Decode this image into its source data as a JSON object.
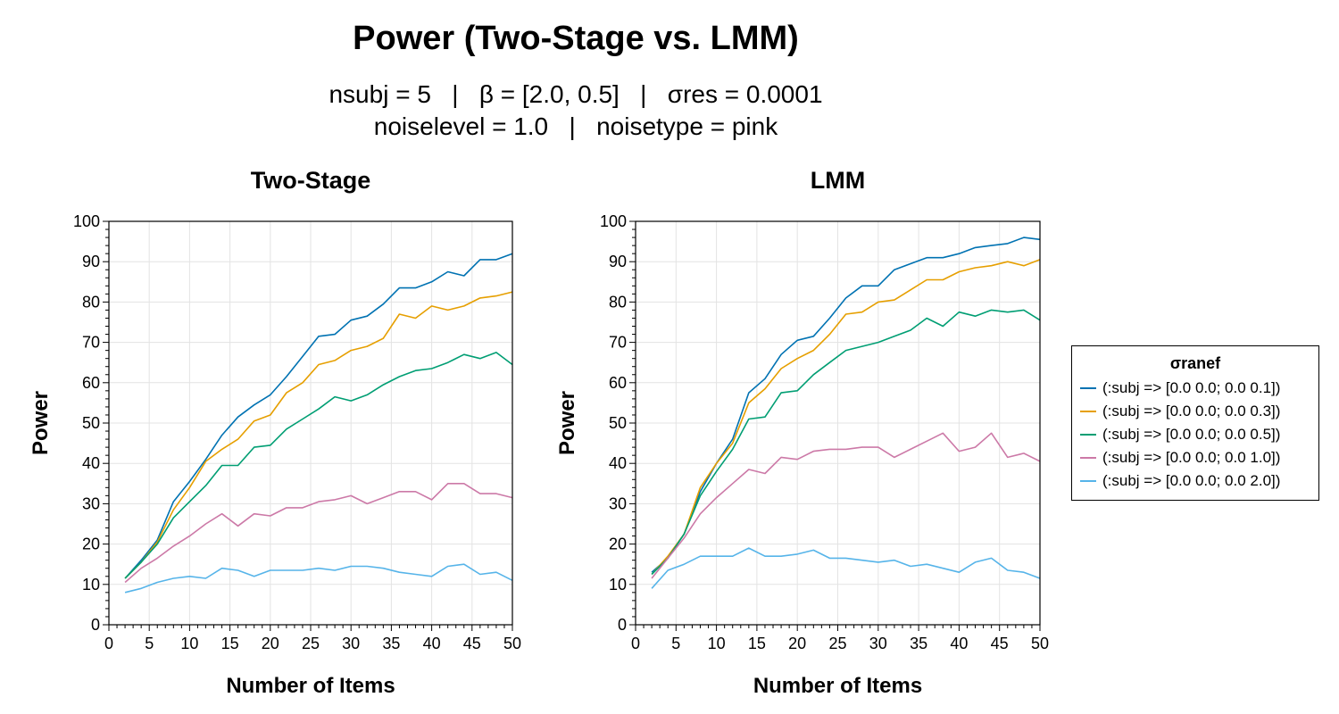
{
  "header": {
    "title": "Power (Two-Stage vs. LMM)",
    "subtitle_line1": "nsubj = 5   |   β = [2.0, 0.5]   |   σres = 0.0001",
    "subtitle_line2": "noiselevel = 1.0   |   noisetype = pink"
  },
  "legend": {
    "title": "σranef",
    "placement": "right",
    "items": [
      {
        "label": "(:subj => [0.0 0.0; 0.0 0.1])",
        "color": "#0072b2"
      },
      {
        "label": "(:subj => [0.0 0.0; 0.0 0.3])",
        "color": "#e69f00"
      },
      {
        "label": "(:subj => [0.0 0.0; 0.0 0.5])",
        "color": "#009e73"
      },
      {
        "label": "(:subj => [0.0 0.0; 0.0 1.0])",
        "color": "#cc79a7"
      },
      {
        "label": "(:subj => [0.0 0.0; 0.0 2.0])",
        "color": "#56b4e9"
      }
    ]
  },
  "chart_data": [
    {
      "type": "line",
      "title": "Two-Stage",
      "xlabel": "Number of Items",
      "ylabel": "Power",
      "xlim": [
        0,
        50
      ],
      "ylim": [
        0,
        100
      ],
      "xticks": [
        "0",
        "5",
        "10",
        "15",
        "20",
        "25",
        "30",
        "35",
        "40",
        "45",
        "50"
      ],
      "yticks": [
        "0",
        "10",
        "20",
        "30",
        "40",
        "50",
        "60",
        "70",
        "80",
        "90",
        "100"
      ],
      "grid": true,
      "x": [
        2,
        4,
        6,
        8,
        10,
        12,
        14,
        16,
        18,
        20,
        22,
        24,
        26,
        28,
        30,
        32,
        34,
        36,
        38,
        40,
        42,
        44,
        46,
        48,
        50
      ],
      "series": [
        {
          "name": "(:subj => [0.0 0.0; 0.0 0.1])",
          "color": "#0072b2",
          "values": [
            11.5,
            16,
            21,
            30.5,
            35.5,
            41,
            47,
            51.5,
            54.5,
            57,
            61.5,
            66.5,
            71.5,
            72,
            75.5,
            76.5,
            79.5,
            83.5,
            83.5,
            85,
            87.5,
            86.5,
            90.5,
            90.5,
            92
          ]
        },
        {
          "name": "(:subj => [0.0 0.0; 0.0 0.3])",
          "color": "#e69f00",
          "values": [
            11.5,
            15.5,
            20.5,
            28.5,
            34,
            40.5,
            43.5,
            46,
            50.5,
            52,
            57.5,
            60,
            64.5,
            65.5,
            68,
            69,
            71,
            77,
            76,
            79,
            78,
            79,
            81,
            81.5,
            82.5
          ]
        },
        {
          "name": "(:subj => [0.0 0.0; 0.0 0.5])",
          "color": "#009e73",
          "values": [
            11.5,
            15.5,
            20,
            26.5,
            30.5,
            34.5,
            39.5,
            39.5,
            44,
            44.5,
            48.5,
            51,
            53.5,
            56.5,
            55.5,
            57,
            59.5,
            61.5,
            63,
            63.5,
            65,
            67,
            66,
            67.5,
            64.5
          ]
        },
        {
          "name": "(:subj => [0.0 0.0; 0.0 1.0])",
          "color": "#cc79a7",
          "values": [
            10.5,
            14,
            16.5,
            19.5,
            22,
            25,
            27.5,
            24.5,
            27.5,
            27,
            29,
            29,
            30.5,
            31,
            32,
            30,
            31.5,
            33,
            33,
            31,
            35,
            35,
            32.5,
            32.5,
            31.5
          ]
        },
        {
          "name": "(:subj => [0.0 0.0; 0.0 2.0])",
          "color": "#56b4e9",
          "values": [
            8,
            9,
            10.5,
            11.5,
            12,
            11.5,
            14,
            13.5,
            12,
            13.5,
            13.5,
            13.5,
            14,
            13.5,
            14.5,
            14.5,
            14,
            13,
            12.5,
            12,
            14.5,
            15,
            12.5,
            13,
            11
          ]
        }
      ]
    },
    {
      "type": "line",
      "title": "LMM",
      "xlabel": "Number of Items",
      "ylabel": "Power",
      "xlim": [
        0,
        50
      ],
      "ylim": [
        0,
        100
      ],
      "xticks": [
        "0",
        "5",
        "10",
        "15",
        "20",
        "25",
        "30",
        "35",
        "40",
        "45",
        "50"
      ],
      "yticks": [
        "0",
        "10",
        "20",
        "30",
        "40",
        "50",
        "60",
        "70",
        "80",
        "90",
        "100"
      ],
      "grid": true,
      "x": [
        2,
        4,
        6,
        8,
        10,
        12,
        14,
        16,
        18,
        20,
        22,
        24,
        26,
        28,
        30,
        32,
        34,
        36,
        38,
        40,
        42,
        44,
        46,
        48,
        50
      ],
      "series": [
        {
          "name": "(:subj => [0.0 0.0; 0.0 0.1])",
          "color": "#0072b2",
          "values": [
            13,
            16.5,
            22.5,
            33,
            40,
            46,
            57.5,
            61,
            67,
            70.5,
            71.5,
            76,
            81,
            84,
            84,
            88,
            89.5,
            91,
            91,
            92,
            93.5,
            94,
            94.5,
            96,
            95.5
          ]
        },
        {
          "name": "(:subj => [0.0 0.0; 0.0 0.3])",
          "color": "#e69f00",
          "values": [
            12.5,
            17,
            22.5,
            34,
            40,
            45,
            55,
            58.5,
            63.5,
            66,
            68,
            72,
            77,
            77.5,
            80,
            80.5,
            83,
            85.5,
            85.5,
            87.5,
            88.5,
            89,
            90,
            89,
            90.5
          ]
        },
        {
          "name": "(:subj => [0.0 0.0; 0.0 0.5])",
          "color": "#009e73",
          "values": [
            12.5,
            16.5,
            22.5,
            32,
            38,
            43.5,
            51,
            51.5,
            57.5,
            58,
            62,
            65,
            68,
            69,
            70,
            71.5,
            73,
            76,
            74,
            77.5,
            76.5,
            78,
            77.5,
            78,
            75.5
          ]
        },
        {
          "name": "(:subj => [0.0 0.0; 0.0 1.0])",
          "color": "#cc79a7",
          "values": [
            11.5,
            16.5,
            21.5,
            27.5,
            31.5,
            35,
            38.5,
            37.5,
            41.5,
            41,
            43,
            43.5,
            43.5,
            44,
            44,
            41.5,
            43.5,
            45.5,
            47.5,
            43,
            44,
            47.5,
            41.5,
            42.5,
            40.5
          ]
        },
        {
          "name": "(:subj => [0.0 0.0; 0.0 2.0])",
          "color": "#56b4e9",
          "values": [
            9,
            13.5,
            15,
            17,
            17,
            17,
            19,
            17,
            17,
            17.5,
            18.5,
            16.5,
            16.5,
            16,
            15.5,
            16,
            14.5,
            15,
            14,
            13,
            15.5,
            16.5,
            13.5,
            13,
            11.5
          ]
        }
      ]
    }
  ]
}
